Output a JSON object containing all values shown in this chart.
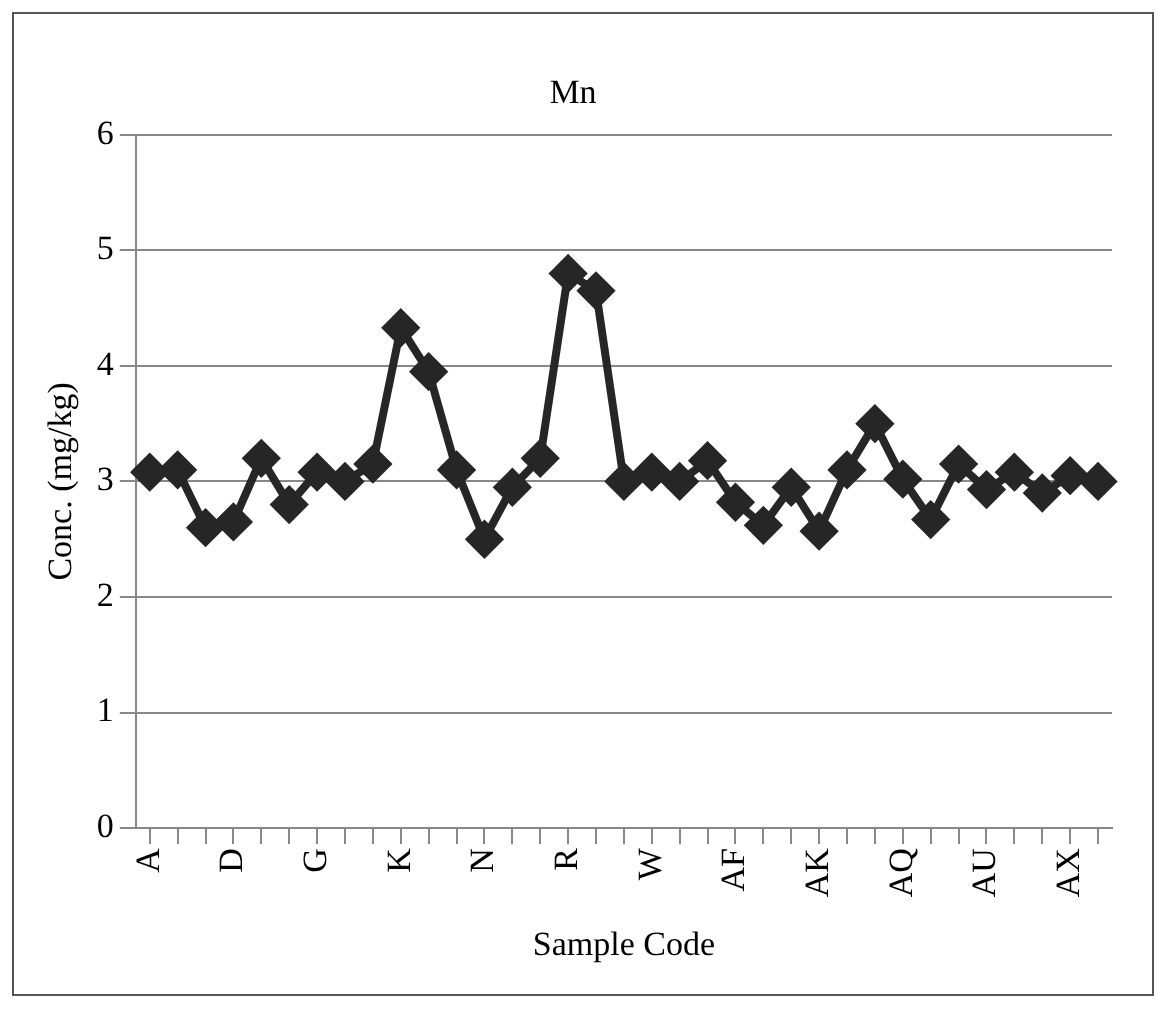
{
  "chart_data": {
    "type": "line",
    "title": "Mn",
    "xlabel": "Sample Code",
    "ylabel": "Conc. (mg/kg)",
    "categories": [
      "A",
      null,
      null,
      "D",
      null,
      null,
      "G",
      null,
      null,
      "K",
      null,
      null,
      "N",
      null,
      null,
      "R",
      null,
      null,
      "W",
      null,
      null,
      "AF",
      null,
      null,
      "AK",
      null,
      null,
      "AQ",
      null,
      null,
      "AU",
      null,
      null,
      "AX",
      null
    ],
    "series": [
      {
        "color": "#262626",
        "values": [
          3.08,
          3.1,
          2.6,
          2.65,
          3.2,
          2.8,
          3.08,
          3.0,
          3.15,
          4.33,
          3.95,
          3.1,
          2.5,
          2.95,
          3.2,
          4.8,
          4.65,
          3.0,
          3.08,
          3.0,
          3.18,
          2.82,
          2.62,
          2.95,
          2.57,
          3.1,
          3.5,
          3.02,
          2.67,
          3.15,
          2.93,
          3.08,
          2.9,
          3.05,
          3.0
        ]
      }
    ],
    "ylim": [
      0,
      6
    ],
    "yticks": [
      0,
      1,
      2,
      3,
      4,
      5,
      6
    ],
    "grid": "y",
    "legend": false,
    "marker": "diamond",
    "line_style": "solid"
  }
}
